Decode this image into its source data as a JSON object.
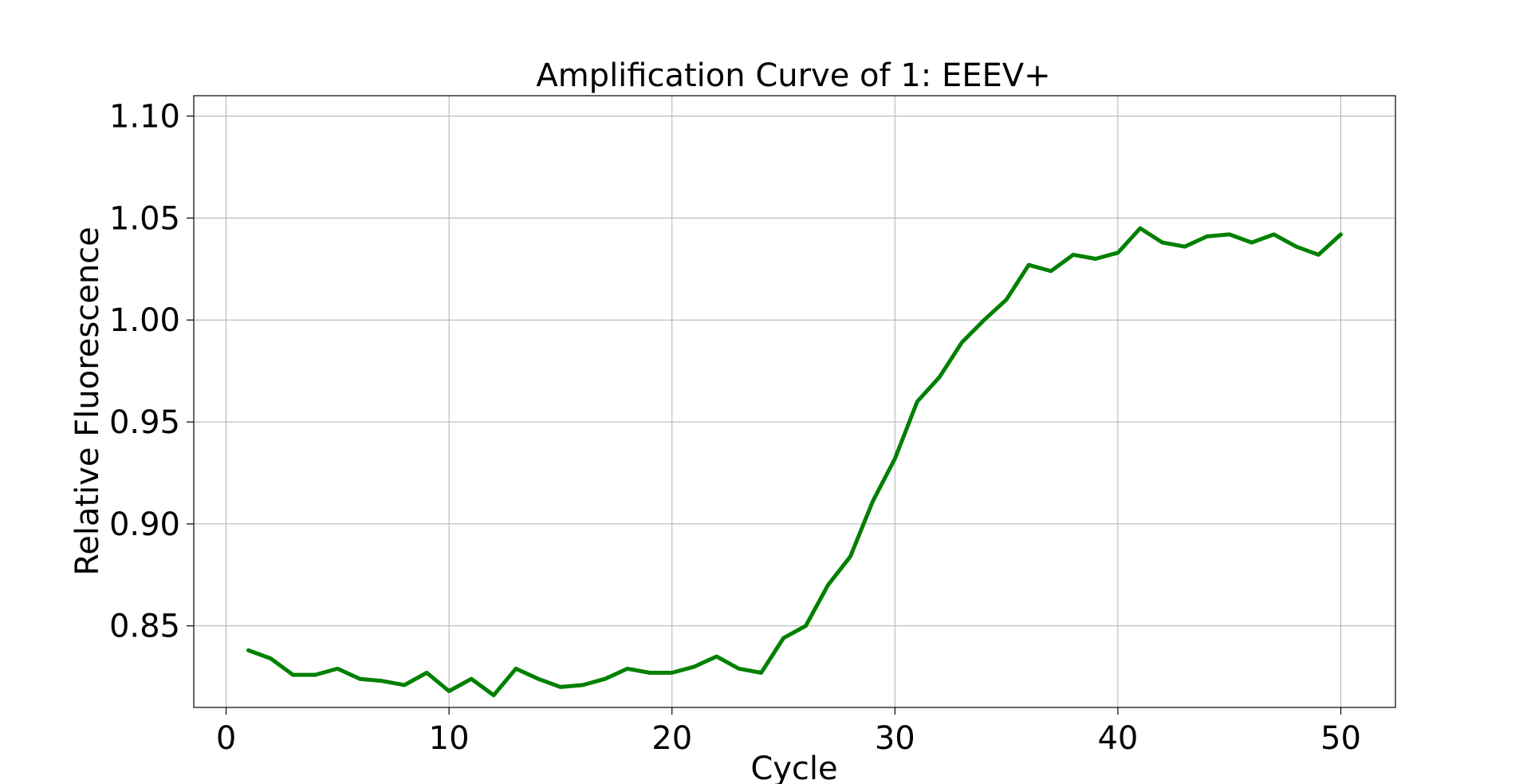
{
  "chart_data": {
    "type": "line",
    "title": "Amplification Curve of 1: EEEV+",
    "xlabel": "Cycle",
    "ylabel": "Relative Fluorescence",
    "xlim": [
      -1.45,
      52.45
    ],
    "ylim": [
      0.81,
      1.11
    ],
    "xticks": [
      0,
      10,
      20,
      30,
      40,
      50
    ],
    "yticks": [
      0.85,
      0.9,
      0.95,
      1.0,
      1.05,
      1.1
    ],
    "xtick_labels": [
      "0",
      "10",
      "20",
      "30",
      "40",
      "50"
    ],
    "ytick_labels": [
      "0.85",
      "0.90",
      "0.95",
      "1.00",
      "1.05",
      "1.10"
    ],
    "grid": true,
    "series": [
      {
        "color": "#008000",
        "x": [
          1,
          2,
          3,
          4,
          5,
          6,
          7,
          8,
          9,
          10,
          11,
          12,
          13,
          14,
          15,
          16,
          17,
          18,
          19,
          20,
          21,
          22,
          23,
          24,
          25,
          26,
          27,
          28,
          29,
          30,
          31,
          32,
          33,
          34,
          35,
          36,
          37,
          38,
          39,
          40,
          41,
          42,
          43,
          44,
          45,
          46,
          47,
          48,
          49,
          50
        ],
        "y": [
          0.838,
          0.834,
          0.826,
          0.826,
          0.829,
          0.824,
          0.823,
          0.821,
          0.827,
          0.818,
          0.824,
          0.816,
          0.829,
          0.824,
          0.82,
          0.821,
          0.824,
          0.829,
          0.827,
          0.827,
          0.83,
          0.835,
          0.829,
          0.827,
          0.844,
          0.85,
          0.87,
          0.884,
          0.911,
          0.932,
          0.96,
          0.972,
          0.989,
          1.0,
          1.01,
          1.027,
          1.024,
          1.032,
          1.03,
          1.033,
          1.045,
          1.038,
          1.036,
          1.041,
          1.042,
          1.038,
          1.042,
          1.036,
          1.032,
          1.042
        ]
      }
    ]
  }
}
